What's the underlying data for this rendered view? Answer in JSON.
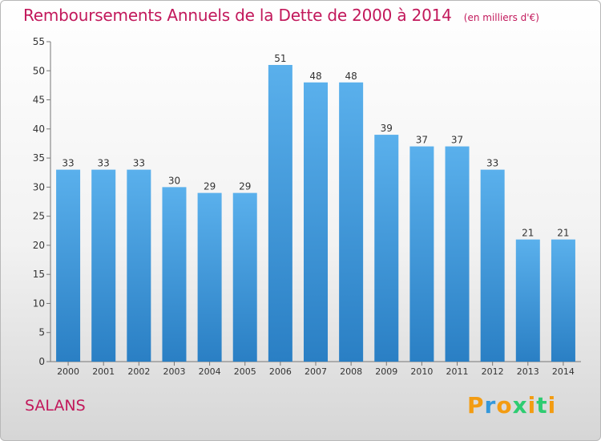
{
  "chart_data": {
    "type": "bar",
    "title": "Remboursements Annuels de la Dette de 2000 à 2014",
    "unit_note": "(en milliers d'€)",
    "categories": [
      "2000",
      "2001",
      "2002",
      "2003",
      "2004",
      "2005",
      "2006",
      "2007",
      "2008",
      "2009",
      "2010",
      "2011",
      "2012",
      "2013",
      "2014"
    ],
    "values": [
      33,
      33,
      33,
      30,
      29,
      29,
      51,
      48,
      48,
      39,
      37,
      37,
      33,
      21,
      21
    ],
    "ylim": [
      0,
      55
    ],
    "yticks": [
      0,
      5,
      10,
      15,
      20,
      25,
      30,
      35,
      40,
      45,
      50,
      55
    ],
    "grid": false,
    "bar_color": "#4a9fe0"
  },
  "footer": {
    "place": "SALANS",
    "logo": "Proxiti"
  }
}
